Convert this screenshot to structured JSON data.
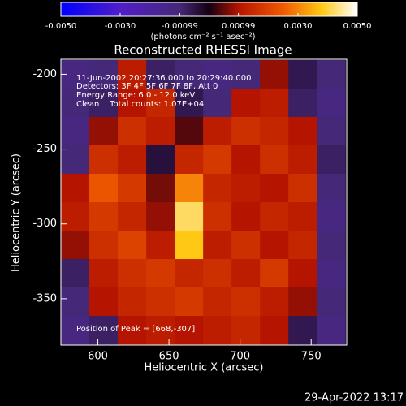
{
  "chart_data": {
    "type": "heatmap",
    "title": "Reconstructed RHESSI Image",
    "x_label": "Heliocentric X (arcsec)",
    "y_label": "Heliocentric Y (arcsec)",
    "colorbar_label": "(photons cm⁻² s⁻¹ asec⁻²)",
    "annotations": [
      "11-Jun-2002 20:27:36.000 to 20:29:40.000",
      "Detectors: 3F 4F 5F 6F 7F 8F, Att 0",
      "Energy Range: 6.0 - 12.0 keV",
      "Clean    Total counts: 1.07E+04",
      "Position of Peak = [668,-307]"
    ],
    "timestamp": "29-Apr-2022 13:17",
    "xlim": [
      574,
      775
    ],
    "ylim": [
      -381,
      -190
    ],
    "xticks": [
      600,
      650,
      700,
      750
    ],
    "yticks": [
      -350,
      -300,
      -250,
      -200
    ],
    "zlim": [
      -0.005,
      0.005
    ],
    "zticks": [
      {
        "value": -0.005,
        "label": "-0.0050"
      },
      {
        "value": -0.003,
        "label": "-0.0030"
      },
      {
        "value": -0.00099,
        "label": "-0.00099"
      },
      {
        "value": 0.00099,
        "label": "0.00099"
      },
      {
        "value": 0.003,
        "label": "0.0030"
      },
      {
        "value": 0.005,
        "label": "0.0050"
      }
    ],
    "x": [
      584,
      604,
      624,
      644,
      664,
      684,
      704,
      724,
      744,
      764
    ],
    "y": [
      -200,
      -219,
      -238,
      -257,
      -276,
      -295,
      -314,
      -333,
      -352,
      -371
    ],
    "z": [
      [
        -0.0012,
        -0.001,
        0.0012,
        -0.0008,
        -0.001,
        -0.0012,
        -0.001,
        0.0008,
        -0.0006,
        -0.001
      ],
      [
        -0.001,
        -0.0008,
        0.001,
        0.0014,
        -0.0006,
        -0.001,
        0.001,
        0.0012,
        -0.0008,
        -0.0012
      ],
      [
        -0.0012,
        0.0008,
        0.0016,
        0.0012,
        0.0004,
        0.0012,
        0.0016,
        0.0014,
        0.001,
        -0.001
      ],
      [
        -0.001,
        0.0016,
        0.0012,
        -0.0004,
        0.0014,
        0.0018,
        0.001,
        0.0016,
        0.0012,
        -0.0008
      ],
      [
        0.001,
        0.0024,
        0.0018,
        0.0006,
        0.003,
        0.0014,
        0.0012,
        0.001,
        0.0016,
        -0.001
      ],
      [
        0.0012,
        0.0018,
        0.0014,
        0.0008,
        0.0042,
        0.0016,
        0.001,
        0.0014,
        0.0012,
        -0.0012
      ],
      [
        0.0008,
        0.0016,
        0.002,
        0.0012,
        0.0038,
        0.0012,
        0.0016,
        0.001,
        0.0014,
        -0.001
      ],
      [
        -0.0008,
        0.0012,
        0.0016,
        0.0018,
        0.0014,
        0.0016,
        0.0012,
        0.0018,
        0.001,
        -0.0012
      ],
      [
        -0.001,
        0.001,
        0.0014,
        0.0016,
        0.0018,
        0.0014,
        0.0016,
        0.0012,
        0.0008,
        -0.001
      ],
      [
        -0.0012,
        -0.0008,
        0.001,
        0.0012,
        0.001,
        0.0012,
        0.0014,
        0.001,
        -0.0006,
        -0.0012
      ]
    ]
  }
}
